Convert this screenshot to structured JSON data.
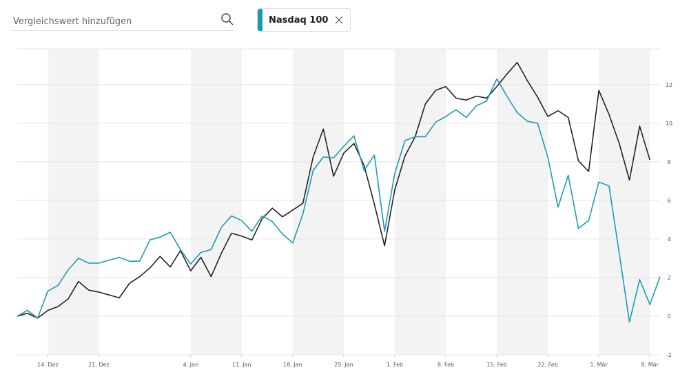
{
  "search_placeholder": "Vergleichswert hinzufügen",
  "chart_data": {
    "type": "line",
    "x": [
      0,
      1,
      2,
      3,
      4,
      5,
      6,
      7,
      8,
      9,
      10,
      11,
      12,
      13,
      14,
      15,
      16,
      17,
      18,
      19,
      20,
      21,
      22,
      23,
      24,
      25,
      26,
      27,
      28,
      29,
      30,
      31,
      32,
      33,
      34,
      35,
      36,
      37,
      38,
      39,
      40,
      41,
      42,
      43,
      44,
      45,
      46,
      47,
      48,
      49,
      50,
      51,
      52,
      53,
      54,
      55,
      56,
      57,
      58,
      59,
      60,
      61,
      62,
      63
    ],
    "series": [
      {
        "name": "Nasdaq 100",
        "color": "#1a9bb5",
        "values": [
          0,
          0.3,
          -0.1,
          1.3,
          1.6,
          2.4,
          3.0,
          2.75,
          2.75,
          2.9,
          3.05,
          2.85,
          2.85,
          3.95,
          4.1,
          4.35,
          3.45,
          2.7,
          3.3,
          3.45,
          4.6,
          5.2,
          4.95,
          4.4,
          5.2,
          4.9,
          4.25,
          3.8,
          5.3,
          7.55,
          8.25,
          8.2,
          8.8,
          9.35,
          7.55,
          8.35,
          4.4,
          7.4,
          9.1,
          9.3,
          9.3,
          10.05,
          10.35,
          10.7,
          10.3,
          10.9,
          11.15,
          12.3,
          11.4,
          10.55,
          10.1,
          10.0,
          8.25,
          5.65,
          7.3,
          4.55,
          4.95,
          6.95,
          6.75,
          3.25,
          -0.3,
          1.9,
          0.6,
          2.05
        ]
      },
      {
        "color": "#222222",
        "values": [
          0,
          0.15,
          -0.1,
          0.3,
          0.5,
          0.9,
          1.8,
          1.35,
          1.25,
          1.1,
          0.95,
          1.7,
          2.05,
          2.5,
          3.1,
          2.55,
          3.4,
          2.35,
          3.05,
          2.05,
          3.25,
          4.3,
          4.15,
          3.95,
          5.05,
          5.6,
          5.15,
          5.5,
          5.85,
          8.25,
          9.7,
          7.25,
          8.45,
          8.95,
          7.8,
          5.8,
          3.65,
          6.55,
          8.3,
          9.3,
          11.0,
          11.7,
          11.9,
          11.3,
          11.2,
          11.4,
          11.3,
          11.9,
          12.55,
          13.15,
          12.2,
          11.35,
          10.35,
          10.65,
          10.3,
          8.05,
          7.5,
          11.7,
          10.45,
          8.95,
          7.05,
          9.85,
          8.1,
          null
        ]
      }
    ],
    "xlim": [
      0,
      63
    ],
    "xticks": [
      {
        "value": 3,
        "label": "14. Dez"
      },
      {
        "value": 8,
        "label": "21. Dez"
      },
      {
        "value": 17,
        "label": "4. Jan"
      },
      {
        "value": 22,
        "label": "11. Jan"
      },
      {
        "value": 27,
        "label": "18. Jan"
      },
      {
        "value": 32,
        "label": "25. Jan"
      },
      {
        "value": 37,
        "label": "1. Feb"
      },
      {
        "value": 42,
        "label": "8. Feb"
      },
      {
        "value": 47,
        "label": "15. Feb"
      },
      {
        "value": 52,
        "label": "22. Feb"
      },
      {
        "value": 57,
        "label": "1. Mär"
      },
      {
        "value": 62,
        "label": "8. Mär"
      }
    ],
    "ylim": [
      -2,
      13.85
    ],
    "yticks": [
      -2,
      0,
      2,
      4,
      6,
      8,
      10,
      12
    ],
    "grid": true
  }
}
